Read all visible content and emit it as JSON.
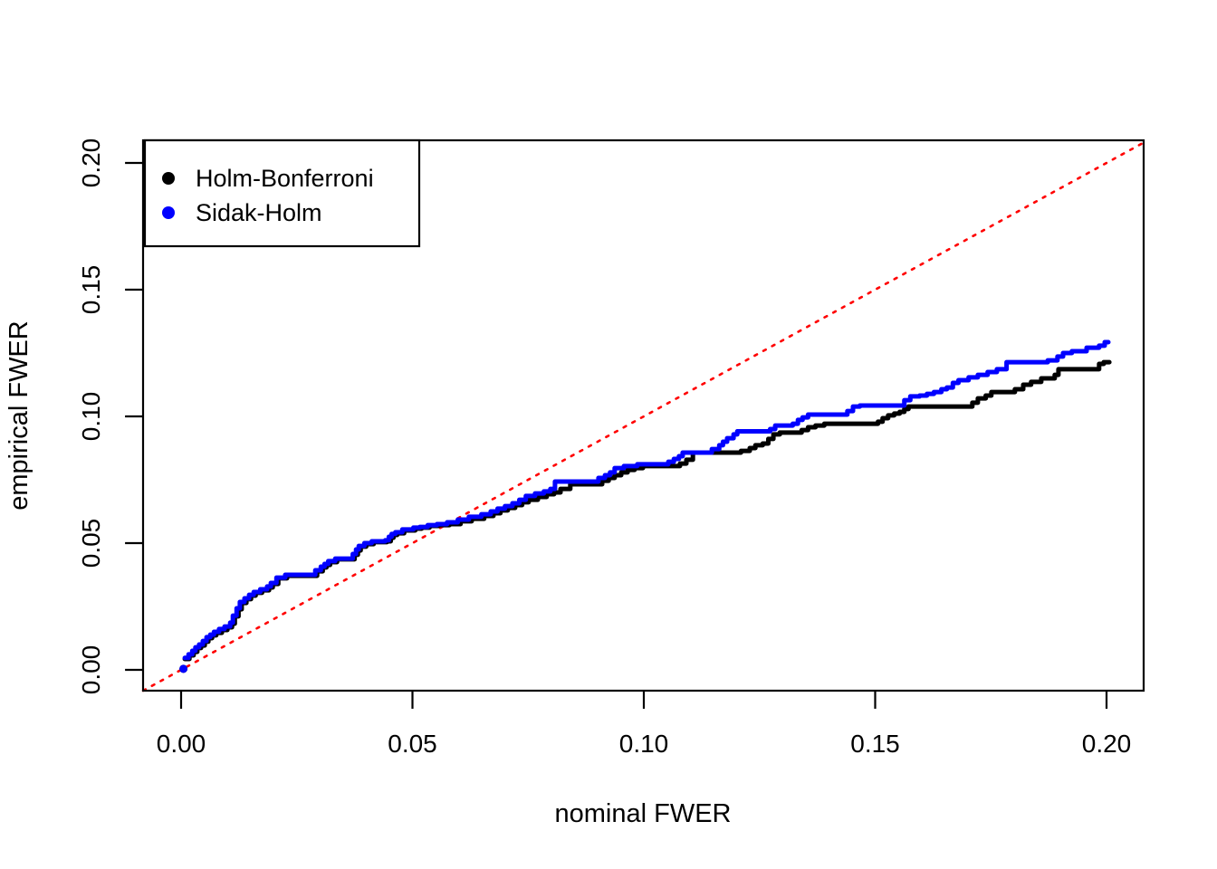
{
  "chart_data": {
    "type": "line",
    "title": "",
    "xlabel": "nominal FWER",
    "ylabel": "empirical FWER",
    "grid": false,
    "xlim": [
      -0.0082,
      0.2082
    ],
    "ylim": [
      -0.0082,
      0.2089
    ],
    "x_ticks": {
      "values": [
        0.0,
        0.05,
        0.1,
        0.15,
        0.2
      ],
      "labels": [
        "0.00",
        "0.05",
        "0.10",
        "0.15",
        "0.20"
      ]
    },
    "y_ticks": {
      "values": [
        0.0,
        0.05,
        0.1,
        0.15,
        0.2
      ],
      "labels": [
        "0.00",
        "0.05",
        "0.10",
        "0.15",
        "0.20"
      ]
    },
    "colors": {
      "black_series": "#000000",
      "blue_series": "#0000ff",
      "reference": "#ff0000",
      "axis": "#000000",
      "background": "#ffffff"
    },
    "legend": {
      "position": "topleft",
      "entries": [
        {
          "label": "Holm-Bonferroni",
          "color": "#000000"
        },
        {
          "label": "Sidak-Holm",
          "color": "#0000ff"
        }
      ]
    },
    "reference_line": {
      "name": "identity y=x",
      "style": "dotted",
      "color": "#ff0000",
      "from": [
        -0.0082,
        -0.0082
      ],
      "to": [
        0.2082,
        0.2082
      ]
    },
    "series": [
      {
        "name": "Holm-Bonferroni",
        "color": "#000000",
        "style": "step",
        "start_dot": [
          0.0005,
          0.0004
        ],
        "points": [
          [
            0.0008,
            0.0043
          ],
          [
            0.0018,
            0.0057
          ],
          [
            0.0027,
            0.0071
          ],
          [
            0.0035,
            0.0086
          ],
          [
            0.0043,
            0.0096
          ],
          [
            0.0051,
            0.0111
          ],
          [
            0.0059,
            0.0125
          ],
          [
            0.0067,
            0.0136
          ],
          [
            0.0076,
            0.0146
          ],
          [
            0.0088,
            0.0157
          ],
          [
            0.01,
            0.0168
          ],
          [
            0.011,
            0.0182
          ],
          [
            0.0116,
            0.0211
          ],
          [
            0.0124,
            0.0239
          ],
          [
            0.0131,
            0.0264
          ],
          [
            0.0141,
            0.0279
          ],
          [
            0.0151,
            0.0293
          ],
          [
            0.0161,
            0.0304
          ],
          [
            0.0175,
            0.0314
          ],
          [
            0.019,
            0.0325
          ],
          [
            0.0198,
            0.0339
          ],
          [
            0.021,
            0.0361
          ],
          [
            0.0229,
            0.0371
          ],
          [
            0.0288,
            0.0371
          ],
          [
            0.0294,
            0.0389
          ],
          [
            0.0306,
            0.0404
          ],
          [
            0.0314,
            0.0414
          ],
          [
            0.0322,
            0.0425
          ],
          [
            0.0337,
            0.0436
          ],
          [
            0.0371,
            0.0436
          ],
          [
            0.0375,
            0.0454
          ],
          [
            0.0382,
            0.0471
          ],
          [
            0.0388,
            0.0486
          ],
          [
            0.04,
            0.0496
          ],
          [
            0.0416,
            0.0504
          ],
          [
            0.0445,
            0.0507
          ],
          [
            0.0453,
            0.0521
          ],
          [
            0.0459,
            0.0532
          ],
          [
            0.0467,
            0.0539
          ],
          [
            0.0482,
            0.055
          ],
          [
            0.0506,
            0.0557
          ],
          [
            0.052,
            0.0561
          ],
          [
            0.0537,
            0.0568
          ],
          [
            0.0557,
            0.0571
          ],
          [
            0.058,
            0.0575
          ],
          [
            0.0604,
            0.0586
          ],
          [
            0.0628,
            0.0596
          ],
          [
            0.0655,
            0.0607
          ],
          [
            0.0675,
            0.0618
          ],
          [
            0.069,
            0.0629
          ],
          [
            0.0706,
            0.0639
          ],
          [
            0.0722,
            0.065
          ],
          [
            0.0737,
            0.0661
          ],
          [
            0.0751,
            0.0671
          ],
          [
            0.0771,
            0.0682
          ],
          [
            0.079,
            0.0693
          ],
          [
            0.0806,
            0.07
          ],
          [
            0.082,
            0.0714
          ],
          [
            0.0841,
            0.0732
          ],
          [
            0.0896,
            0.0732
          ],
          [
            0.091,
            0.0746
          ],
          [
            0.0924,
            0.0757
          ],
          [
            0.0937,
            0.0768
          ],
          [
            0.0951,
            0.0779
          ],
          [
            0.0965,
            0.0789
          ],
          [
            0.098,
            0.0796
          ],
          [
            0.0998,
            0.0804
          ],
          [
            0.1063,
            0.0804
          ],
          [
            0.1078,
            0.0814
          ],
          [
            0.1092,
            0.0829
          ],
          [
            0.1106,
            0.0857
          ],
          [
            0.1196,
            0.0857
          ],
          [
            0.121,
            0.0864
          ],
          [
            0.1229,
            0.0875
          ],
          [
            0.1241,
            0.0886
          ],
          [
            0.1257,
            0.0893
          ],
          [
            0.1269,
            0.0911
          ],
          [
            0.128,
            0.0929
          ],
          [
            0.1294,
            0.0936
          ],
          [
            0.1341,
            0.0946
          ],
          [
            0.1355,
            0.0957
          ],
          [
            0.1371,
            0.0964
          ],
          [
            0.139,
            0.0971
          ],
          [
            0.1495,
            0.0971
          ],
          [
            0.1506,
            0.0979
          ],
          [
            0.1516,
            0.0993
          ],
          [
            0.1528,
            0.1004
          ],
          [
            0.1541,
            0.1011
          ],
          [
            0.1553,
            0.1018
          ],
          [
            0.1563,
            0.1029
          ],
          [
            0.1572,
            0.1039
          ],
          [
            0.17,
            0.1039
          ],
          [
            0.171,
            0.1054
          ],
          [
            0.1722,
            0.1071
          ],
          [
            0.1739,
            0.1082
          ],
          [
            0.1751,
            0.1096
          ],
          [
            0.179,
            0.1096
          ],
          [
            0.1802,
            0.1107
          ],
          [
            0.182,
            0.1125
          ],
          [
            0.1837,
            0.1136
          ],
          [
            0.1859,
            0.115
          ],
          [
            0.1888,
            0.1164
          ],
          [
            0.1896,
            0.1186
          ],
          [
            0.1975,
            0.1186
          ],
          [
            0.1984,
            0.1207
          ],
          [
            0.1994,
            0.1214
          ],
          [
            0.2006,
            0.1214
          ]
        ]
      },
      {
        "name": "Sidak-Holm",
        "color": "#0000ff",
        "style": "step",
        "start_dot": [
          0.0005,
          0.0004
        ],
        "points": [
          [
            0.0008,
            0.0047
          ],
          [
            0.0016,
            0.0061
          ],
          [
            0.0024,
            0.0075
          ],
          [
            0.0031,
            0.0089
          ],
          [
            0.0039,
            0.01
          ],
          [
            0.0047,
            0.0114
          ],
          [
            0.0055,
            0.0129
          ],
          [
            0.0063,
            0.0139
          ],
          [
            0.0071,
            0.015
          ],
          [
            0.0082,
            0.0161
          ],
          [
            0.0094,
            0.0171
          ],
          [
            0.0106,
            0.0186
          ],
          [
            0.0112,
            0.0214
          ],
          [
            0.012,
            0.0243
          ],
          [
            0.0127,
            0.0268
          ],
          [
            0.0137,
            0.0282
          ],
          [
            0.0147,
            0.0296
          ],
          [
            0.0157,
            0.0307
          ],
          [
            0.0171,
            0.0318
          ],
          [
            0.0186,
            0.0329
          ],
          [
            0.0194,
            0.0343
          ],
          [
            0.0206,
            0.0364
          ],
          [
            0.0225,
            0.0375
          ],
          [
            0.0284,
            0.0375
          ],
          [
            0.029,
            0.0393
          ],
          [
            0.0302,
            0.0407
          ],
          [
            0.031,
            0.0418
          ],
          [
            0.0318,
            0.0429
          ],
          [
            0.0333,
            0.0439
          ],
          [
            0.0367,
            0.0439
          ],
          [
            0.0371,
            0.0457
          ],
          [
            0.0378,
            0.0475
          ],
          [
            0.0384,
            0.0489
          ],
          [
            0.0396,
            0.05
          ],
          [
            0.0412,
            0.0507
          ],
          [
            0.0441,
            0.0511
          ],
          [
            0.0449,
            0.0525
          ],
          [
            0.0455,
            0.0536
          ],
          [
            0.0463,
            0.0543
          ],
          [
            0.0478,
            0.0554
          ],
          [
            0.0502,
            0.0561
          ],
          [
            0.0516,
            0.0564
          ],
          [
            0.0533,
            0.0571
          ],
          [
            0.0553,
            0.0575
          ],
          [
            0.0575,
            0.0582
          ],
          [
            0.0598,
            0.0593
          ],
          [
            0.0622,
            0.0604
          ],
          [
            0.0649,
            0.0614
          ],
          [
            0.0669,
            0.0625
          ],
          [
            0.0684,
            0.0636
          ],
          [
            0.07,
            0.0646
          ],
          [
            0.0716,
            0.0657
          ],
          [
            0.0731,
            0.0671
          ],
          [
            0.0745,
            0.0686
          ],
          [
            0.0765,
            0.0696
          ],
          [
            0.0784,
            0.0704
          ],
          [
            0.0798,
            0.0714
          ],
          [
            0.0808,
            0.0743
          ],
          [
            0.0888,
            0.0743
          ],
          [
            0.0902,
            0.0757
          ],
          [
            0.0916,
            0.0768
          ],
          [
            0.0927,
            0.0779
          ],
          [
            0.0937,
            0.0796
          ],
          [
            0.0957,
            0.0804
          ],
          [
            0.0986,
            0.0811
          ],
          [
            0.1053,
            0.0821
          ],
          [
            0.1065,
            0.0832
          ],
          [
            0.1076,
            0.0843
          ],
          [
            0.1084,
            0.0857
          ],
          [
            0.1131,
            0.0857
          ],
          [
            0.1147,
            0.0871
          ],
          [
            0.1163,
            0.0886
          ],
          [
            0.1171,
            0.09
          ],
          [
            0.118,
            0.0914
          ],
          [
            0.1194,
            0.0929
          ],
          [
            0.1202,
            0.0941
          ],
          [
            0.1261,
            0.0941
          ],
          [
            0.1273,
            0.095
          ],
          [
            0.1284,
            0.0964
          ],
          [
            0.1322,
            0.0971
          ],
          [
            0.1333,
            0.0986
          ],
          [
            0.1343,
            0.0996
          ],
          [
            0.1355,
            0.1007
          ],
          [
            0.1428,
            0.1007
          ],
          [
            0.144,
            0.1021
          ],
          [
            0.1452,
            0.1039
          ],
          [
            0.1467,
            0.1043
          ],
          [
            0.1555,
            0.1043
          ],
          [
            0.1563,
            0.1064
          ],
          [
            0.1576,
            0.1079
          ],
          [
            0.1596,
            0.1082
          ],
          [
            0.1612,
            0.1089
          ],
          [
            0.1627,
            0.1096
          ],
          [
            0.1643,
            0.1107
          ],
          [
            0.1655,
            0.1114
          ],
          [
            0.1668,
            0.1132
          ],
          [
            0.168,
            0.1143
          ],
          [
            0.1702,
            0.1154
          ],
          [
            0.1722,
            0.1164
          ],
          [
            0.1743,
            0.1175
          ],
          [
            0.1763,
            0.1186
          ],
          [
            0.1784,
            0.1214
          ],
          [
            0.1857,
            0.1214
          ],
          [
            0.1873,
            0.1221
          ],
          [
            0.1894,
            0.1236
          ],
          [
            0.1906,
            0.125
          ],
          [
            0.1925,
            0.1257
          ],
          [
            0.1957,
            0.1271
          ],
          [
            0.1984,
            0.1279
          ],
          [
            0.1996,
            0.1293
          ],
          [
            0.2004,
            0.1293
          ]
        ]
      }
    ]
  }
}
